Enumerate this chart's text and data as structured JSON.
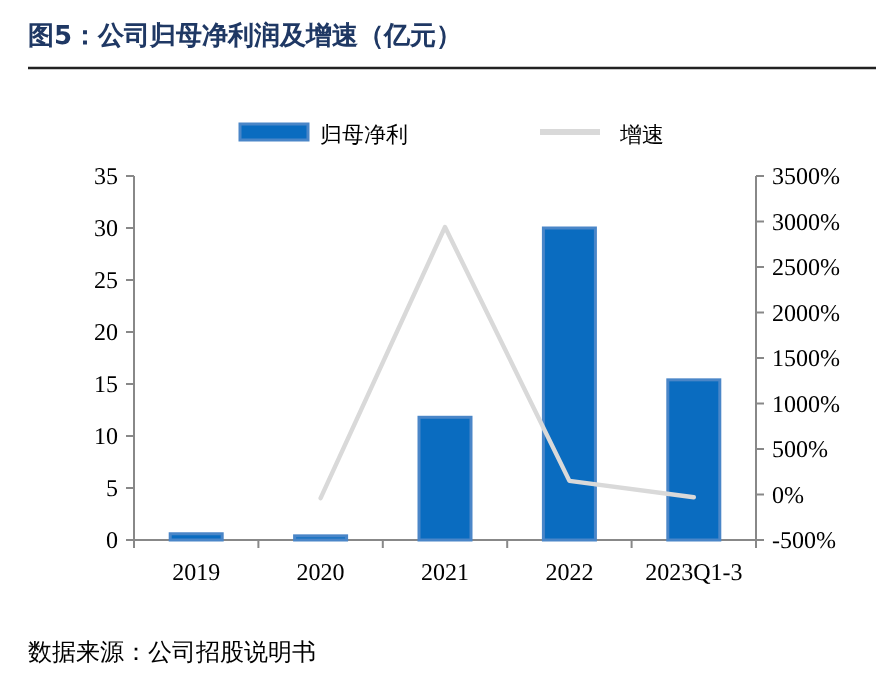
{
  "chart_data": {
    "type": "bar",
    "title": "图5：公司归母净利润及增速（亿元）",
    "categories": [
      "2019",
      "2020",
      "2021",
      "2022",
      "2023Q1-3"
    ],
    "series": [
      {
        "name": "归母净利",
        "color": "#0a6cc0",
        "values": [
          0.6,
          0.4,
          11.8,
          30.0,
          15.4
        ]
      },
      {
        "name": "增速",
        "type": "line",
        "axis": "y2",
        "color": "#d9d9d9",
        "values": [
          null,
          -40,
          2940,
          150,
          -30
        ]
      }
    ],
    "ylim": [
      0,
      35
    ],
    "yticks": [
      0,
      5,
      10,
      15,
      20,
      25,
      30,
      35
    ],
    "y2lim": [
      -500,
      3500
    ],
    "y2ticks": [
      {
        "value": -500,
        "label": "-500%"
      },
      {
        "value": 0,
        "label": "0%"
      },
      {
        "value": 500,
        "label": "500%"
      },
      {
        "value": 1000,
        "label": "1000%"
      },
      {
        "value": 1500,
        "label": "1500%"
      },
      {
        "value": 2000,
        "label": "2000%"
      },
      {
        "value": 2500,
        "label": "2500%"
      },
      {
        "value": 3000,
        "label": "3000%"
      },
      {
        "value": 3500,
        "label": "3500%"
      }
    ],
    "legend": "top",
    "grid": false,
    "marker": "none",
    "line_style": "solid",
    "annotations": [
      "数据来源：公司招股说明书"
    ]
  }
}
